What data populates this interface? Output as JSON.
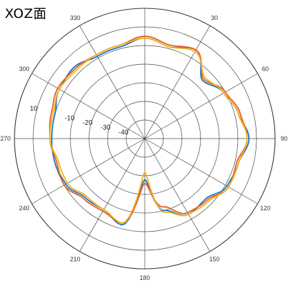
{
  "chart_data": {
    "type": "line",
    "subtype": "polar",
    "title": "XOZ面",
    "angle_unit": "degrees",
    "angle_direction": "counterclockwise",
    "zero_angle_at": "top",
    "angle_ticks": [
      {
        "angle": 0,
        "label": ""
      },
      {
        "angle": 30,
        "label": "330"
      },
      {
        "angle": 60,
        "label": "300"
      },
      {
        "angle": 90,
        "label": "270"
      },
      {
        "angle": 120,
        "label": "240"
      },
      {
        "angle": 150,
        "label": "210"
      },
      {
        "angle": 180,
        "label": "180"
      },
      {
        "angle": 210,
        "label": "150"
      },
      {
        "angle": 240,
        "label": "120"
      },
      {
        "angle": 270,
        "label": "90"
      },
      {
        "angle": 300,
        "label": "60"
      },
      {
        "angle": 330,
        "label": "30"
      }
    ],
    "radial_ticks": [
      {
        "value": -40,
        "label": "-40"
      },
      {
        "value": -30,
        "label": "-30"
      },
      {
        "value": -20,
        "label": "-20"
      },
      {
        "value": -10,
        "label": "-10"
      },
      {
        "value": 0,
        "label": ""
      },
      {
        "value": 10,
        "label": "10"
      }
    ],
    "rlim": [
      -50,
      20
    ],
    "grid": true,
    "legend": false,
    "series": [
      {
        "color": "#1f77c4",
        "angles": [
          0,
          15,
          30,
          45,
          60,
          75,
          90,
          105,
          120,
          135,
          150,
          165,
          180,
          195,
          210,
          225,
          240,
          255,
          270,
          285,
          300,
          315,
          330,
          345
        ],
        "values": [
          4,
          1,
          1,
          4,
          3,
          0,
          0,
          0,
          -1,
          -5,
          -6,
          -2,
          -28,
          -10,
          -3,
          -4,
          1,
          2,
          6,
          2,
          -1,
          -6,
          5,
          1
        ]
      },
      {
        "color": "#e8602c",
        "angles": [
          0,
          15,
          30,
          45,
          60,
          75,
          90,
          105,
          120,
          135,
          150,
          165,
          180,
          195,
          210,
          225,
          240,
          255,
          270,
          285,
          300,
          315,
          330,
          345
        ],
        "values": [
          5,
          2,
          2,
          3,
          4,
          2,
          1,
          -1,
          0,
          -4,
          -5,
          -3,
          -26,
          -12,
          -4,
          -3,
          2,
          1,
          5,
          3,
          0,
          -5,
          5,
          2
        ]
      },
      {
        "color": "#f2b51c",
        "angles": [
          0,
          15,
          30,
          45,
          60,
          75,
          90,
          105,
          120,
          135,
          150,
          165,
          180,
          195,
          210,
          225,
          240,
          255,
          270,
          285,
          300,
          315,
          330,
          345
        ],
        "values": [
          4,
          2,
          2,
          2,
          3,
          1,
          1,
          -2,
          -2,
          -6,
          -6,
          -3,
          -32,
          -9,
          -3,
          -2,
          2,
          2,
          5,
          2,
          -1,
          -4,
          4,
          1
        ]
      }
    ]
  }
}
